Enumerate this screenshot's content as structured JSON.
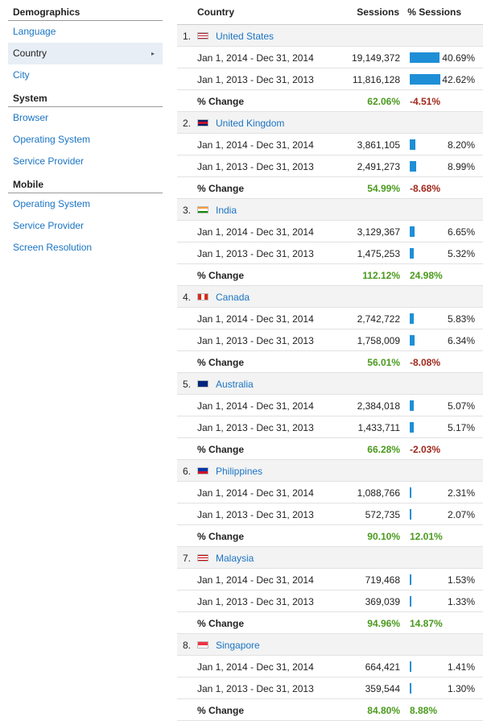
{
  "sidebar": {
    "sections": [
      {
        "title": "Demographics",
        "items": [
          {
            "label": "Language",
            "selected": false
          },
          {
            "label": "Country",
            "selected": true
          },
          {
            "label": "City",
            "selected": false
          }
        ]
      },
      {
        "title": "System",
        "items": [
          {
            "label": "Browser",
            "selected": false
          },
          {
            "label": "Operating System",
            "selected": false
          },
          {
            "label": "Service Provider",
            "selected": false
          }
        ]
      },
      {
        "title": "Mobile",
        "items": [
          {
            "label": "Operating System",
            "selected": false
          },
          {
            "label": "Service Provider",
            "selected": false
          },
          {
            "label": "Screen Resolution",
            "selected": false
          }
        ]
      }
    ],
    "selected_arrow": "▸"
  },
  "table": {
    "headers": {
      "country": "Country",
      "sessions": "Sessions",
      "pct_sessions": "% Sessions"
    },
    "change_label": "% Change",
    "colors": {
      "bar": "#1e8fd6",
      "positive": "#4a9a1d",
      "negative": "#a0281c",
      "link": "#1a74c4"
    },
    "rows": [
      {
        "rank": "1.",
        "country": "United States",
        "flag": "us-flag-icon",
        "p1": {
          "period": "Jan 1, 2014 - Dec 31, 2014",
          "sessions": "19,149,372",
          "pct": "40.69%",
          "share": 0.4069
        },
        "p2": {
          "period": "Jan 1, 2013 - Dec 31, 2013",
          "sessions": "11,816,128",
          "pct": "42.62%",
          "share": 0.4262
        },
        "change": {
          "sessions": "62.06%",
          "pct": "-4.51%",
          "pct_sign": "neg"
        }
      },
      {
        "rank": "2.",
        "country": "United Kingdom",
        "flag": "uk-flag-icon",
        "p1": {
          "period": "Jan 1, 2014 - Dec 31, 2014",
          "sessions": "3,861,105",
          "pct": "8.20%",
          "share": 0.082
        },
        "p2": {
          "period": "Jan 1, 2013 - Dec 31, 2013",
          "sessions": "2,491,273",
          "pct": "8.99%",
          "share": 0.0899
        },
        "change": {
          "sessions": "54.99%",
          "pct": "-8.68%",
          "pct_sign": "neg"
        }
      },
      {
        "rank": "3.",
        "country": "India",
        "flag": "india-flag-icon",
        "p1": {
          "period": "Jan 1, 2014 - Dec 31, 2014",
          "sessions": "3,129,367",
          "pct": "6.65%",
          "share": 0.0665
        },
        "p2": {
          "period": "Jan 1, 2013 - Dec 31, 2013",
          "sessions": "1,475,253",
          "pct": "5.32%",
          "share": 0.0532
        },
        "change": {
          "sessions": "112.12%",
          "pct": "24.98%",
          "pct_sign": "pos"
        }
      },
      {
        "rank": "4.",
        "country": "Canada",
        "flag": "canada-flag-icon",
        "p1": {
          "period": "Jan 1, 2014 - Dec 31, 2014",
          "sessions": "2,742,722",
          "pct": "5.83%",
          "share": 0.0583
        },
        "p2": {
          "period": "Jan 1, 2013 - Dec 31, 2013",
          "sessions": "1,758,009",
          "pct": "6.34%",
          "share": 0.0634
        },
        "change": {
          "sessions": "56.01%",
          "pct": "-8.08%",
          "pct_sign": "neg"
        }
      },
      {
        "rank": "5.",
        "country": "Australia",
        "flag": "australia-flag-icon",
        "p1": {
          "period": "Jan 1, 2014 - Dec 31, 2014",
          "sessions": "2,384,018",
          "pct": "5.07%",
          "share": 0.0507
        },
        "p2": {
          "period": "Jan 1, 2013 - Dec 31, 2013",
          "sessions": "1,433,711",
          "pct": "5.17%",
          "share": 0.0517
        },
        "change": {
          "sessions": "66.28%",
          "pct": "-2.03%",
          "pct_sign": "neg"
        }
      },
      {
        "rank": "6.",
        "country": "Philippines",
        "flag": "philippines-flag-icon",
        "p1": {
          "period": "Jan 1, 2014 - Dec 31, 2014",
          "sessions": "1,088,766",
          "pct": "2.31%",
          "share": 0.0231
        },
        "p2": {
          "period": "Jan 1, 2013 - Dec 31, 2013",
          "sessions": "572,735",
          "pct": "2.07%",
          "share": 0.0207
        },
        "change": {
          "sessions": "90.10%",
          "pct": "12.01%",
          "pct_sign": "pos"
        }
      },
      {
        "rank": "7.",
        "country": "Malaysia",
        "flag": "malaysia-flag-icon",
        "p1": {
          "period": "Jan 1, 2014 - Dec 31, 2014",
          "sessions": "719,468",
          "pct": "1.53%",
          "share": 0.0153
        },
        "p2": {
          "period": "Jan 1, 2013 - Dec 31, 2013",
          "sessions": "369,039",
          "pct": "1.33%",
          "share": 0.0133
        },
        "change": {
          "sessions": "94.96%",
          "pct": "14.87%",
          "pct_sign": "pos"
        }
      },
      {
        "rank": "8.",
        "country": "Singapore",
        "flag": "singapore-flag-icon",
        "p1": {
          "period": "Jan 1, 2014 - Dec 31, 2014",
          "sessions": "664,421",
          "pct": "1.41%",
          "share": 0.0141
        },
        "p2": {
          "period": "Jan 1, 2013 - Dec 31, 2013",
          "sessions": "359,544",
          "pct": "1.30%",
          "share": 0.013
        },
        "change": {
          "sessions": "84.80%",
          "pct": "8.88%",
          "pct_sign": "pos"
        }
      }
    ]
  }
}
